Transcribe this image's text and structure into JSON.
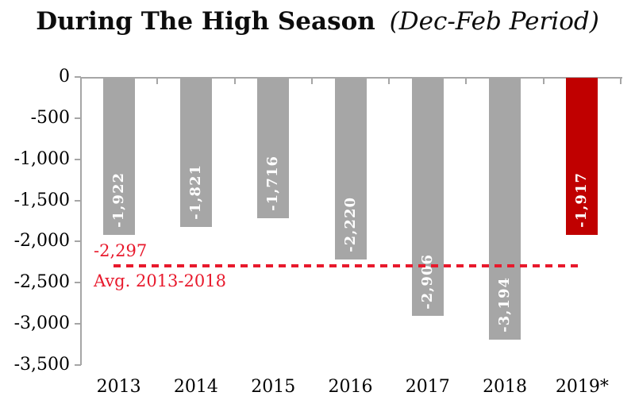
{
  "title": {
    "main": "During The High Season",
    "qualifier": "(Dec-Feb Period)"
  },
  "chart_data": {
    "type": "bar",
    "categories": [
      "2013",
      "2014",
      "2015",
      "2016",
      "2017",
      "2018",
      "2019*"
    ],
    "values": [
      -1922,
      -1821,
      -1716,
      -2220,
      -2906,
      -3194,
      -1917
    ],
    "value_labels": [
      "-1,922",
      "-1,821",
      "-1,716",
      "-2,220",
      "-2,906",
      "-3,194",
      "-1,917"
    ],
    "highlight_index": 6,
    "ylim": [
      -3500,
      0
    ],
    "y_tick_values": [
      0,
      -500,
      -1000,
      -1500,
      -2000,
      -2500,
      -3000,
      -3500
    ],
    "y_tick_labels": [
      "0",
      "-500",
      "-1,000",
      "-1,500",
      "-2,000",
      "-2,500",
      "-3,000",
      "-3,500"
    ],
    "avg_line": {
      "value": -2297,
      "value_label": "-2,297",
      "label": "Avg. 2013-2018"
    },
    "grid": false,
    "legend": false,
    "colors": {
      "bar": "#a6a6a6",
      "highlight_bar": "#c00000",
      "bar_value_text": "#ffffff",
      "avg_line": "#e8192c",
      "axis": "#a6a6a6",
      "text": "#000000"
    }
  }
}
